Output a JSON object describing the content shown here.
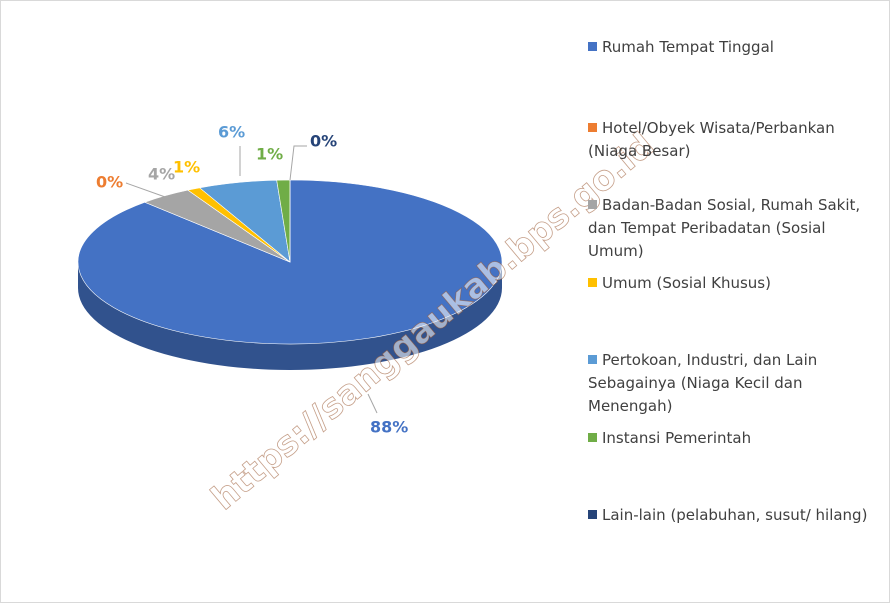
{
  "chart_data": {
    "type": "pie",
    "categories": [
      "Rumah Tempat Tinggal",
      "Hotel/Obyek Wisata/Perbankan (Niaga Besar)",
      "Badan-Badan Sosial, Rumah Sakit, dan Tempat Peribadatan  (Sosial Umum)",
      "Umum (Sosial Khusus)",
      "Pertokoan, Industri, dan Lain Sebagainya (Niaga Kecil dan Menengah)",
      "Instansi Pemerintah",
      "Lain-lain (pelabuhan, susut/ hilang)"
    ],
    "values": [
      88,
      0,
      4,
      1,
      6,
      1,
      0
    ],
    "value_labels": [
      "88%",
      "0%",
      "4%",
      "1%",
      "6%",
      "1%",
      "0%"
    ],
    "colors": [
      "#4472c4",
      "#ed7d31",
      "#a5a5a5",
      "#ffc000",
      "#5b9bd5",
      "#70ad47",
      "#264478"
    ],
    "legend": "right",
    "watermark": "https://sanggaukab.bps.go.id"
  }
}
